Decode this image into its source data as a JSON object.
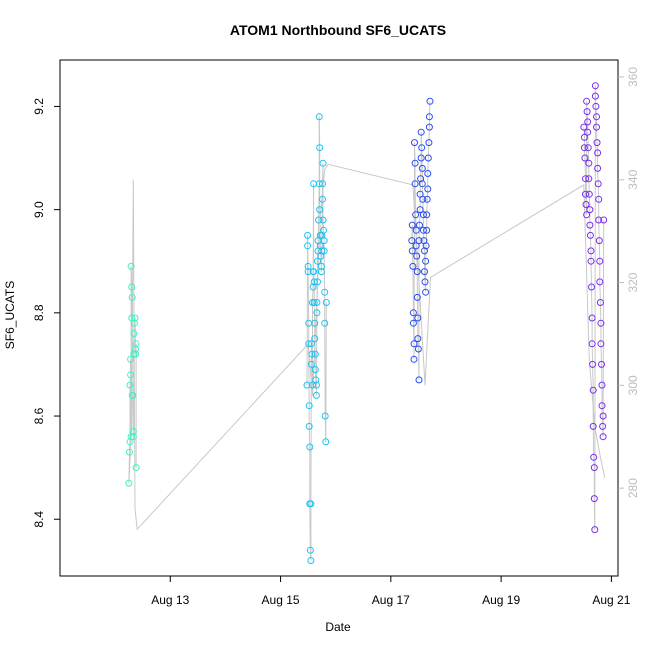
{
  "chart_data": {
    "type": "scatter",
    "title": "ATOM1 Northbound SF6_UCATS",
    "xlabel": "Date",
    "ylabel": "SF6_UCATS",
    "x_ticks": [
      {
        "label": "Aug 13",
        "value": 13
      },
      {
        "label": "Aug 15",
        "value": 15
      },
      {
        "label": "Aug 17",
        "value": 17
      },
      {
        "label": "Aug 19",
        "value": 19
      },
      {
        "label": "Aug 21",
        "value": 21
      }
    ],
    "xlim": [
      11.0,
      21.12
    ],
    "ylim": [
      8.29,
      9.29
    ],
    "y_ticks": [
      8.4,
      8.6,
      8.8,
      9.0,
      9.2
    ],
    "y2_ticks": [
      280,
      300,
      320,
      340,
      360
    ],
    "y2lim": [
      262.9,
      363.3
    ],
    "grid": false,
    "legend": "none",
    "colors": {
      "flight1": "#3ef2c4",
      "flight2": "#1ec3f0",
      "flight3": "#2a4ff0",
      "flight4": "#7a2ff0",
      "secondary_line": "#c8c8c8",
      "right_axis": "#bdbdbd"
    },
    "series": [
      {
        "color_key": "flight1",
        "x": [
          12.25,
          12.26,
          12.27,
          12.27,
          12.28,
          12.28,
          12.29,
          12.29,
          12.3,
          12.3,
          12.31,
          12.31,
          12.32,
          12.33,
          12.33,
          12.34,
          12.34,
          12.35,
          12.36,
          12.37,
          12.37,
          12.38,
          12.38
        ],
        "y": [
          8.47,
          8.53,
          8.55,
          8.66,
          8.68,
          8.71,
          8.56,
          8.89,
          8.85,
          8.79,
          8.83,
          8.64,
          8.64,
          8.57,
          8.56,
          8.72,
          8.76,
          8.78,
          8.79,
          8.73,
          8.72,
          8.74,
          8.5
        ]
      },
      {
        "color_key": "flight2",
        "x": [
          15.48,
          15.49,
          15.49,
          15.5,
          15.5,
          15.51,
          15.51,
          15.52,
          15.52,
          15.53,
          15.53,
          15.54,
          15.55,
          15.55,
          15.56,
          15.56,
          15.57,
          15.58,
          15.58,
          15.59,
          15.59,
          15.6,
          15.6,
          15.61,
          15.61,
          15.62,
          15.62,
          15.63,
          15.63,
          15.64,
          15.65,
          15.65,
          15.66,
          15.66,
          15.67,
          15.67,
          15.68,
          15.68,
          15.69,
          15.7,
          15.7,
          15.71,
          15.71,
          15.72,
          15.72,
          15.73,
          15.74,
          15.74,
          15.75,
          15.75,
          15.76,
          15.76,
          15.77,
          15.77,
          15.78,
          15.79,
          15.79,
          15.8,
          15.8,
          15.81,
          15.82,
          15.83
        ],
        "y": [
          8.66,
          8.95,
          8.93,
          8.89,
          8.88,
          8.78,
          8.74,
          8.62,
          8.58,
          8.54,
          8.43,
          8.34,
          8.32,
          8.43,
          8.7,
          8.74,
          8.72,
          8.66,
          8.82,
          8.85,
          8.88,
          9.05,
          8.88,
          8.86,
          8.82,
          8.78,
          8.75,
          8.72,
          8.69,
          8.67,
          8.66,
          8.64,
          8.8,
          8.82,
          8.86,
          8.9,
          8.92,
          8.94,
          8.98,
          9.05,
          9.18,
          9.12,
          9.0,
          8.95,
          8.93,
          8.91,
          8.89,
          8.88,
          8.92,
          8.95,
          9.02,
          9.05,
          9.09,
          8.98,
          8.96,
          8.94,
          8.92,
          8.84,
          8.78,
          8.6,
          8.55,
          8.82
        ]
      },
      {
        "color_key": "flight3",
        "x": [
          17.38,
          17.39,
          17.39,
          17.4,
          17.41,
          17.41,
          17.42,
          17.42,
          17.43,
          17.44,
          17.44,
          17.45,
          17.46,
          17.46,
          17.47,
          17.48,
          17.48,
          17.49,
          17.49,
          17.5,
          17.51,
          17.51,
          17.52,
          17.53,
          17.53,
          17.54,
          17.55,
          17.55,
          17.56,
          17.57,
          17.57,
          17.58,
          17.59,
          17.59,
          17.6,
          17.61,
          17.61,
          17.62,
          17.63,
          17.63,
          17.64,
          17.65,
          17.65,
          17.66,
          17.67,
          17.67,
          17.68,
          17.69,
          17.7,
          17.7,
          17.71
        ],
        "y": [
          8.94,
          8.97,
          8.92,
          8.89,
          8.8,
          8.78,
          8.74,
          8.71,
          9.13,
          9.09,
          9.05,
          8.99,
          8.96,
          8.93,
          8.91,
          8.88,
          8.83,
          8.79,
          8.75,
          8.73,
          8.67,
          8.94,
          8.97,
          9.0,
          9.03,
          9.06,
          9.1,
          9.15,
          9.12,
          9.08,
          9.05,
          9.02,
          8.99,
          8.96,
          8.94,
          8.92,
          8.88,
          8.86,
          8.84,
          8.9,
          8.93,
          8.96,
          8.99,
          9.02,
          9.04,
          9.07,
          9.1,
          9.13,
          9.16,
          9.18,
          9.21
        ]
      },
      {
        "color_key": "flight4",
        "x": [
          20.5,
          20.51,
          20.51,
          20.52,
          20.53,
          20.53,
          20.54,
          20.55,
          20.55,
          20.56,
          20.57,
          20.57,
          20.58,
          20.59,
          20.59,
          20.6,
          20.61,
          20.61,
          20.62,
          20.63,
          20.63,
          20.64,
          20.65,
          20.65,
          20.66,
          20.67,
          20.67,
          20.68,
          20.69,
          20.69,
          20.7,
          20.71,
          20.71,
          20.72,
          20.73,
          20.73,
          20.74,
          20.75,
          20.75,
          20.76,
          20.77,
          20.77,
          20.78,
          20.79,
          20.79,
          20.8,
          20.81,
          20.81,
          20.82,
          20.83,
          20.83,
          20.84,
          20.85,
          20.85,
          20.86
        ],
        "y": [
          9.16,
          9.14,
          9.12,
          9.1,
          9.06,
          9.03,
          9.01,
          8.99,
          9.21,
          9.19,
          9.17,
          9.15,
          9.12,
          9.09,
          9.06,
          9.03,
          9.0,
          8.97,
          8.95,
          8.92,
          8.9,
          8.85,
          8.79,
          8.74,
          8.7,
          8.65,
          8.58,
          8.52,
          8.5,
          8.44,
          8.38,
          9.24,
          9.22,
          9.2,
          9.18,
          9.16,
          9.13,
          9.11,
          9.08,
          9.05,
          9.02,
          8.98,
          8.94,
          8.9,
          8.86,
          8.82,
          8.78,
          8.74,
          8.7,
          8.66,
          8.62,
          8.58,
          8.56,
          8.6,
          8.98
        ]
      }
    ],
    "secondary_line": {
      "note_axis": "right",
      "x": [
        12.25,
        12.3,
        12.33,
        12.36,
        12.4,
        15.5,
        15.58,
        15.65,
        15.72,
        15.8,
        15.86,
        17.4,
        17.5,
        17.62,
        17.72,
        20.5,
        20.6,
        20.7,
        20.8,
        20.88
      ],
      "y": [
        281,
        292,
        340,
        276,
        272,
        308,
        298,
        314,
        333,
        342,
        343,
        339,
        322,
        300,
        321,
        339,
        305,
        292,
        286,
        282
      ]
    }
  }
}
